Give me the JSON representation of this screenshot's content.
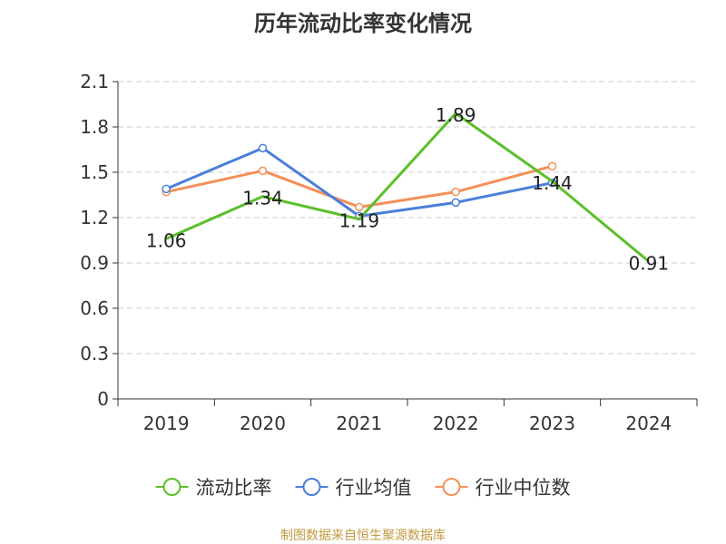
{
  "chart_data": {
    "type": "line",
    "title": "历年流动比率变化情况",
    "categories": [
      "2019",
      "2020",
      "2021",
      "2022",
      "2023",
      "2024"
    ],
    "y_ticks": [
      "0",
      "0.3",
      "0.6",
      "0.9",
      "1.2",
      "1.5",
      "1.8",
      "2.1"
    ],
    "ylim": [
      0,
      2.1
    ],
    "grid": "horizontal dashed",
    "legend_position": "bottom",
    "series": [
      {
        "name": "流动比率",
        "color": "#5cbf2a",
        "values": [
          1.06,
          1.34,
          1.19,
          1.89,
          1.44,
          0.91
        ],
        "labels": [
          "1.06",
          "1.34",
          "1.19",
          "1.89",
          "1.44",
          "0.91"
        ],
        "marker_idx": []
      },
      {
        "name": "行业均值",
        "color": "#4a7fd9",
        "values": [
          1.39,
          1.66,
          1.21,
          1.3,
          1.43,
          null
        ],
        "labels": [],
        "marker_idx": [
          0,
          1,
          2,
          3,
          4
        ]
      },
      {
        "name": "行业中位数",
        "color": "#f5905a",
        "values": [
          1.37,
          1.51,
          1.27,
          1.37,
          1.54,
          null
        ],
        "labels": [],
        "marker_idx": [
          0,
          1,
          2,
          3,
          4
        ]
      }
    ]
  },
  "footer": {
    "source": "制图数据来自恒生聚源数据库"
  }
}
